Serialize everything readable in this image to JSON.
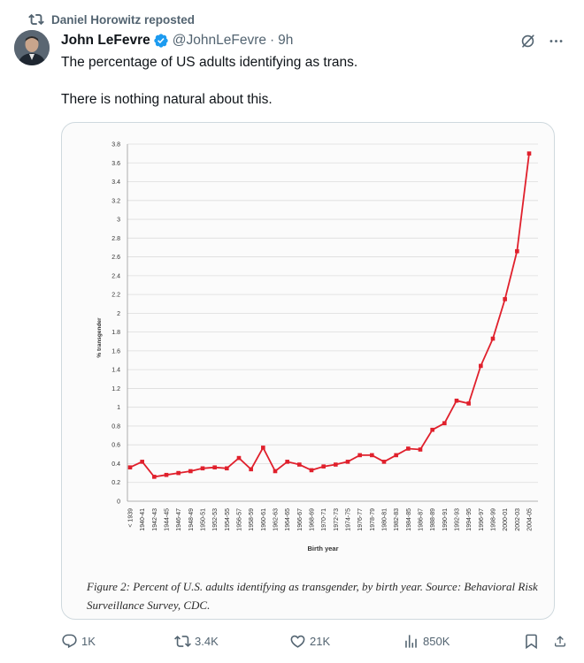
{
  "repost_line": {
    "text": "Daniel Horowitz reposted"
  },
  "author": {
    "name": "John LeFevre",
    "handle": "@JohnLeFevre",
    "dot": "·",
    "time": "9h",
    "verified_color": "#1d9bf0"
  },
  "post": {
    "line1": "The percentage of US adults identifying as trans.",
    "line2": "There is nothing natural about this."
  },
  "figure": {
    "caption": "Figure 2: Percent of U.S. adults identifying as transgender, by birth year. Source: Behavioral Risk Surveillance Survey, CDC."
  },
  "chart_data": {
    "type": "line",
    "title": "",
    "xlabel": "Birth year",
    "ylabel": "% transgender",
    "ylim": [
      0,
      3.8
    ],
    "ytick_step": 0.2,
    "ytick_labels": [
      "0",
      "0.2",
      "0.4",
      "0.6",
      "0.8",
      "1",
      "1.2",
      "1.4",
      "1.6",
      "1.8",
      "2",
      "2.2",
      "2.4",
      "2.6",
      "2.8",
      "3",
      "3.2",
      "3.4",
      "3.6",
      "3.8"
    ],
    "grid": true,
    "legend": "none",
    "color": "#e0202c",
    "categories": [
      "< 1939",
      "1940-41",
      "1942-43",
      "1944-45",
      "1946-47",
      "1948-49",
      "1950-51",
      "1952-53",
      "1954-55",
      "1956-57",
      "1958-59",
      "1960-61",
      "1962-63",
      "1964-65",
      "1966-67",
      "1968-69",
      "1970-71",
      "1972-73",
      "1974-75",
      "1976-77",
      "1978-79",
      "1980-81",
      "1982-83",
      "1984-85",
      "1986-87",
      "1988-89",
      "1990-91",
      "1992-93",
      "1994-95",
      "1996-97",
      "1998-99",
      "2000-01",
      "2002-03",
      "2004-05"
    ],
    "values": [
      0.36,
      0.42,
      0.26,
      0.28,
      0.3,
      0.32,
      0.35,
      0.36,
      0.35,
      0.46,
      0.34,
      0.57,
      0.32,
      0.42,
      0.39,
      0.33,
      0.37,
      0.39,
      0.42,
      0.49,
      0.49,
      0.42,
      0.49,
      0.56,
      0.55,
      0.76,
      0.83,
      1.07,
      1.04,
      1.44,
      1.73,
      2.15,
      2.66,
      3.7
    ]
  },
  "actions": {
    "replies": "1K",
    "reposts": "3.4K",
    "likes": "21K",
    "views": "850K"
  },
  "icons": [
    "repost-icon",
    "verified-badge-icon",
    "grok-icon",
    "more-icon",
    "reply-icon",
    "like-icon",
    "views-icon",
    "bookmark-icon",
    "share-icon"
  ]
}
